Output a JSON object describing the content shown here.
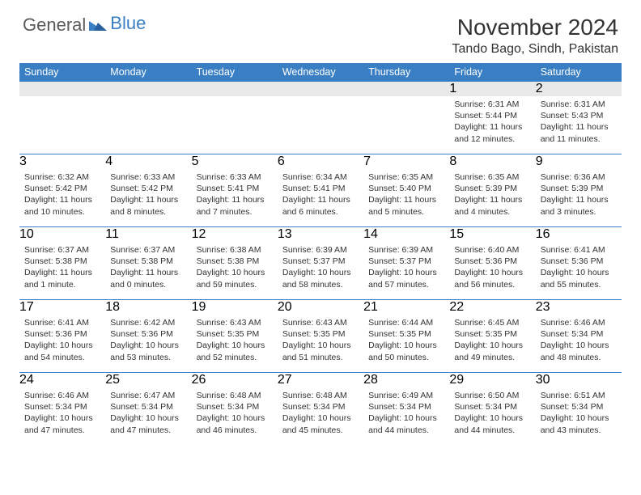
{
  "brand": {
    "part1": "General",
    "part2": "Blue"
  },
  "title": "November 2024",
  "location": "Tando Bago, Sindh, Pakistan",
  "colors": {
    "header_bg": "#3a7fc4",
    "header_text": "#ffffff",
    "daynum_bg": "#e9e9e9",
    "text": "#333333",
    "rule": "#3a7fc4",
    "brand_gray": "#5a5a5a",
    "brand_blue": "#3a7fc4"
  },
  "weekdays": [
    "Sunday",
    "Monday",
    "Tuesday",
    "Wednesday",
    "Thursday",
    "Friday",
    "Saturday"
  ],
  "weeks": [
    [
      {
        "day": null
      },
      {
        "day": null
      },
      {
        "day": null
      },
      {
        "day": null
      },
      {
        "day": null
      },
      {
        "day": 1,
        "sunrise": "6:31 AM",
        "sunset": "5:44 PM",
        "daylight": "11 hours and 12 minutes."
      },
      {
        "day": 2,
        "sunrise": "6:31 AM",
        "sunset": "5:43 PM",
        "daylight": "11 hours and 11 minutes."
      }
    ],
    [
      {
        "day": 3,
        "sunrise": "6:32 AM",
        "sunset": "5:42 PM",
        "daylight": "11 hours and 10 minutes."
      },
      {
        "day": 4,
        "sunrise": "6:33 AM",
        "sunset": "5:42 PM",
        "daylight": "11 hours and 8 minutes."
      },
      {
        "day": 5,
        "sunrise": "6:33 AM",
        "sunset": "5:41 PM",
        "daylight": "11 hours and 7 minutes."
      },
      {
        "day": 6,
        "sunrise": "6:34 AM",
        "sunset": "5:41 PM",
        "daylight": "11 hours and 6 minutes."
      },
      {
        "day": 7,
        "sunrise": "6:35 AM",
        "sunset": "5:40 PM",
        "daylight": "11 hours and 5 minutes."
      },
      {
        "day": 8,
        "sunrise": "6:35 AM",
        "sunset": "5:39 PM",
        "daylight": "11 hours and 4 minutes."
      },
      {
        "day": 9,
        "sunrise": "6:36 AM",
        "sunset": "5:39 PM",
        "daylight": "11 hours and 3 minutes."
      }
    ],
    [
      {
        "day": 10,
        "sunrise": "6:37 AM",
        "sunset": "5:38 PM",
        "daylight": "11 hours and 1 minute."
      },
      {
        "day": 11,
        "sunrise": "6:37 AM",
        "sunset": "5:38 PM",
        "daylight": "11 hours and 0 minutes."
      },
      {
        "day": 12,
        "sunrise": "6:38 AM",
        "sunset": "5:38 PM",
        "daylight": "10 hours and 59 minutes."
      },
      {
        "day": 13,
        "sunrise": "6:39 AM",
        "sunset": "5:37 PM",
        "daylight": "10 hours and 58 minutes."
      },
      {
        "day": 14,
        "sunrise": "6:39 AM",
        "sunset": "5:37 PM",
        "daylight": "10 hours and 57 minutes."
      },
      {
        "day": 15,
        "sunrise": "6:40 AM",
        "sunset": "5:36 PM",
        "daylight": "10 hours and 56 minutes."
      },
      {
        "day": 16,
        "sunrise": "6:41 AM",
        "sunset": "5:36 PM",
        "daylight": "10 hours and 55 minutes."
      }
    ],
    [
      {
        "day": 17,
        "sunrise": "6:41 AM",
        "sunset": "5:36 PM",
        "daylight": "10 hours and 54 minutes."
      },
      {
        "day": 18,
        "sunrise": "6:42 AM",
        "sunset": "5:36 PM",
        "daylight": "10 hours and 53 minutes."
      },
      {
        "day": 19,
        "sunrise": "6:43 AM",
        "sunset": "5:35 PM",
        "daylight": "10 hours and 52 minutes."
      },
      {
        "day": 20,
        "sunrise": "6:43 AM",
        "sunset": "5:35 PM",
        "daylight": "10 hours and 51 minutes."
      },
      {
        "day": 21,
        "sunrise": "6:44 AM",
        "sunset": "5:35 PM",
        "daylight": "10 hours and 50 minutes."
      },
      {
        "day": 22,
        "sunrise": "6:45 AM",
        "sunset": "5:35 PM",
        "daylight": "10 hours and 49 minutes."
      },
      {
        "day": 23,
        "sunrise": "6:46 AM",
        "sunset": "5:34 PM",
        "daylight": "10 hours and 48 minutes."
      }
    ],
    [
      {
        "day": 24,
        "sunrise": "6:46 AM",
        "sunset": "5:34 PM",
        "daylight": "10 hours and 47 minutes."
      },
      {
        "day": 25,
        "sunrise": "6:47 AM",
        "sunset": "5:34 PM",
        "daylight": "10 hours and 47 minutes."
      },
      {
        "day": 26,
        "sunrise": "6:48 AM",
        "sunset": "5:34 PM",
        "daylight": "10 hours and 46 minutes."
      },
      {
        "day": 27,
        "sunrise": "6:48 AM",
        "sunset": "5:34 PM",
        "daylight": "10 hours and 45 minutes."
      },
      {
        "day": 28,
        "sunrise": "6:49 AM",
        "sunset": "5:34 PM",
        "daylight": "10 hours and 44 minutes."
      },
      {
        "day": 29,
        "sunrise": "6:50 AM",
        "sunset": "5:34 PM",
        "daylight": "10 hours and 44 minutes."
      },
      {
        "day": 30,
        "sunrise": "6:51 AM",
        "sunset": "5:34 PM",
        "daylight": "10 hours and 43 minutes."
      }
    ]
  ],
  "labels": {
    "sunrise": "Sunrise:",
    "sunset": "Sunset:",
    "daylight": "Daylight:"
  }
}
